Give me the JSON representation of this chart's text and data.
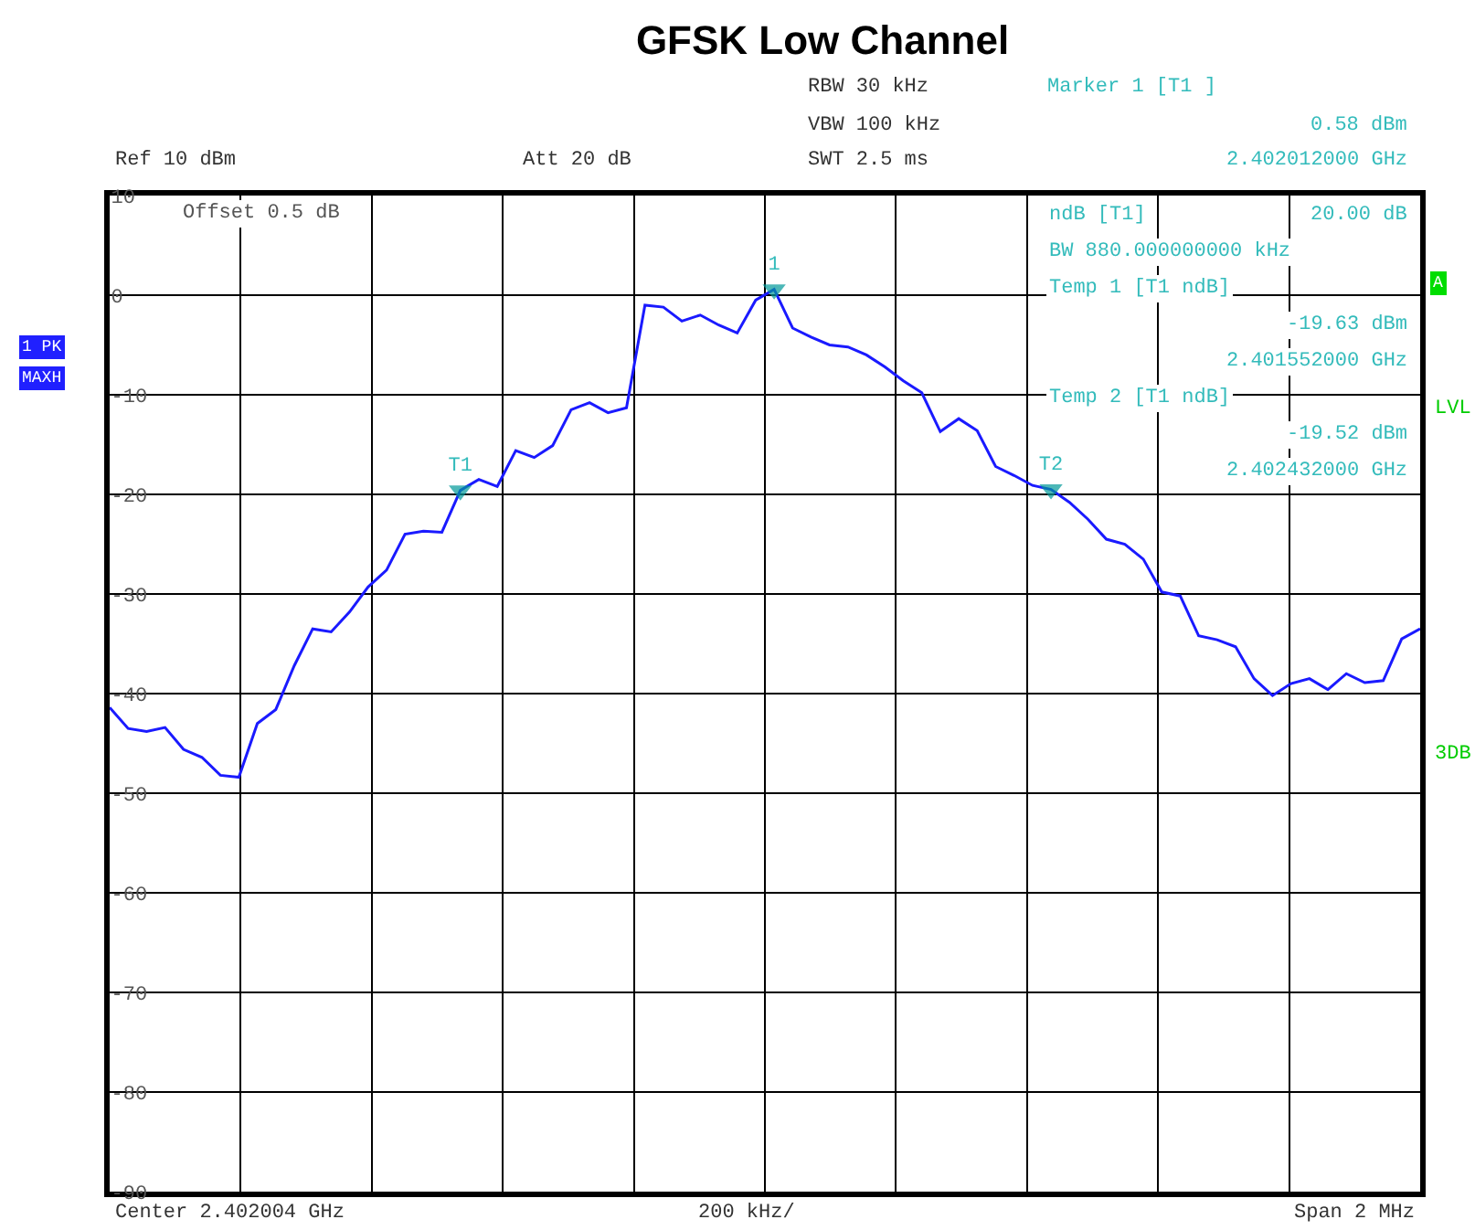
{
  "chart_data": {
    "type": "line",
    "title": "GFSK Low Channel",
    "categories": [
      null,
      null,
      null,
      null,
      null,
      null,
      null,
      null,
      null,
      null,
      null,
      null,
      null,
      null,
      null,
      null,
      null,
      null,
      null,
      null,
      null,
      null,
      null,
      null,
      null,
      null,
      null,
      null,
      null,
      null,
      null,
      null,
      null,
      null,
      null,
      null,
      null,
      null,
      null,
      null,
      null,
      null,
      null,
      null,
      null,
      null,
      null,
      null,
      null,
      null,
      null,
      null,
      null,
      null,
      null,
      null,
      null,
      null,
      null,
      null,
      null,
      null,
      null,
      null,
      null,
      null,
      null,
      null,
      null,
      null,
      null,
      null
    ],
    "ylim": [
      -90,
      10
    ],
    "yticks": [
      10,
      0,
      -10,
      -20,
      -30,
      -40,
      -50,
      -60,
      -70,
      -80,
      -90
    ],
    "grid": true,
    "series": [
      {
        "color": "#1a1aff",
        "values": [
          -41.4,
          -43.5,
          -43.8,
          -43.4,
          -45.6,
          -46.4,
          -48.2,
          -48.4,
          -43.0,
          -41.6,
          -37.2,
          -33.5,
          -33.8,
          -31.8,
          -29.3,
          -27.6,
          -24.0,
          -23.7,
          -23.8,
          -19.6,
          -18.5,
          -19.2,
          -15.6,
          -16.3,
          -15.1,
          -11.5,
          -10.8,
          -11.8,
          -11.3,
          -1.0,
          -1.2,
          -2.6,
          -2.0,
          -3.0,
          -3.8,
          -0.5,
          0.58,
          -3.3,
          -4.2,
          -5.0,
          -5.2,
          -6.0,
          -7.2,
          -8.6,
          -9.8,
          -13.7,
          -12.4,
          -13.6,
          -17.2,
          -18.1,
          -19.1,
          -19.5,
          -20.8,
          -22.5,
          -24.5,
          -25.0,
          -26.5,
          -29.8,
          -30.2,
          -34.2,
          -34.6,
          -35.3,
          -38.5,
          -40.2,
          -39.0,
          -38.5,
          -39.6,
          -38.0,
          -38.9,
          -38.7,
          -34.5,
          -33.5
        ],
        "value_labels": [
          null,
          null,
          null,
          null,
          null,
          null,
          null,
          null,
          null,
          null,
          null,
          null,
          null,
          null,
          null,
          null,
          null,
          null,
          null,
          "T1",
          null,
          null,
          null,
          null,
          null,
          null,
          null,
          null,
          null,
          null,
          null,
          null,
          null,
          null,
          null,
          null,
          "1",
          null,
          null,
          null,
          null,
          null,
          null,
          null,
          null,
          null,
          null,
          null,
          null,
          null,
          null,
          "T2",
          null,
          null,
          null,
          null,
          null,
          null,
          null,
          null,
          null,
          null,
          null,
          null,
          null,
          null,
          null,
          null,
          null,
          null,
          null,
          null
        ]
      }
    ],
    "annotations": [
      "RBW 30 kHz",
      "VBW 100 kHz",
      "Ref 10 dBm",
      "Att 20 dB",
      "SWT 2.5 ms",
      "Marker 1 [T1 ]",
      "0.58 dBm",
      "2.402012000 GHz",
      "Offset 0.5 dB",
      "ndB [T1]",
      "20.00 dB",
      "BW 880.000000000 kHz",
      "Temp 1 [T1 ndB]",
      "-19.63 dBm",
      "2.401552000 GHz",
      "Temp 2 [T1 ndB]",
      "-19.52 dBm",
      "2.402432000 GHz",
      "1 PK",
      "MAXH",
      "A",
      "LVL",
      "3DB",
      "Center 2.402004 GHz",
      "200 kHz/",
      "Span 2 MHz"
    ]
  }
}
